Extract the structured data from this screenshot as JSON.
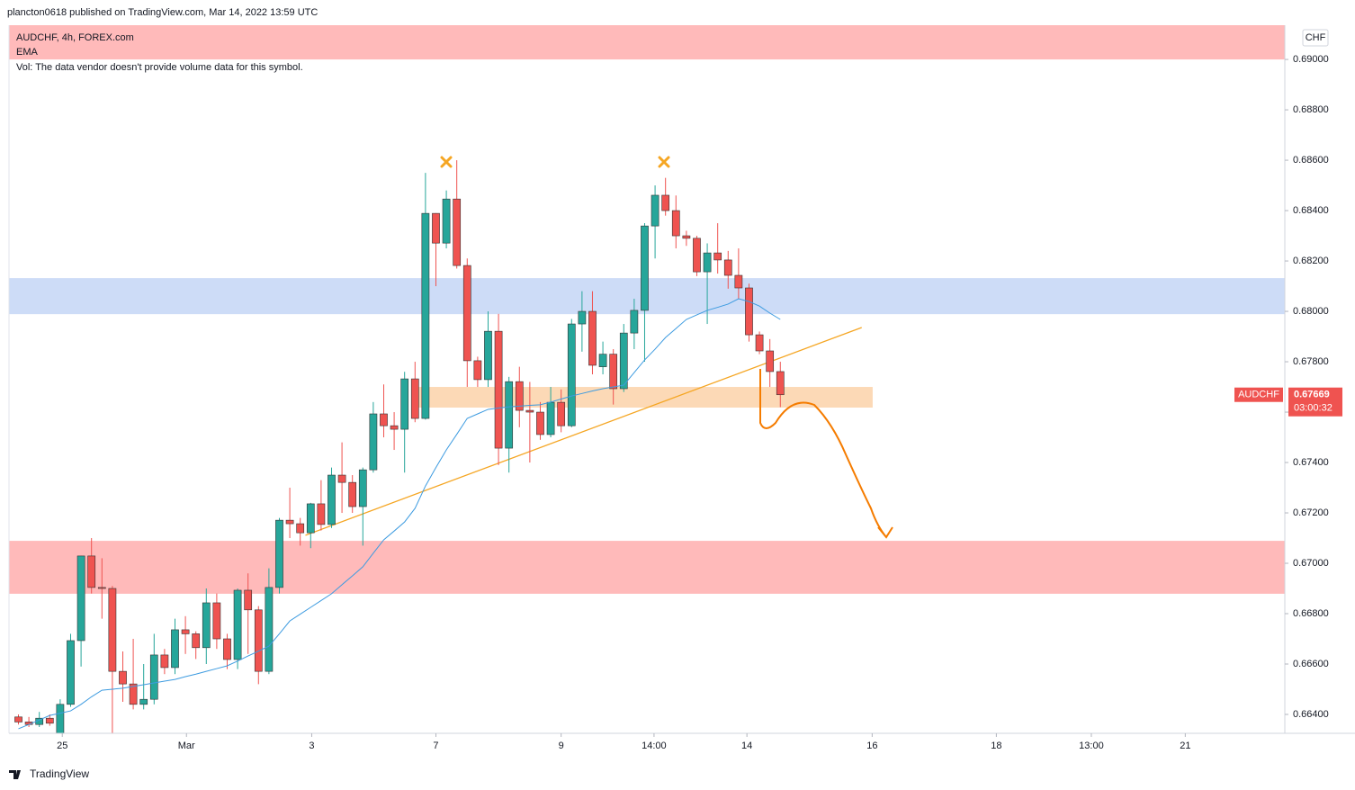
{
  "header": {
    "published": "plancton0618 published on TradingView.com, Mar 14, 2022 13:59 UTC",
    "footer": "TradingView"
  },
  "chart_data": {
    "type": "candlestick",
    "symbol": "AUDCHF, 4h, FOREX.com",
    "indicator": "EMA",
    "volume_note": "Vol: The data vendor doesn't provide volume data for this symbol.",
    "currency": "CHF",
    "up_color": "#26a69a",
    "down_color": "#ef5350",
    "ema_color": "#3d9be0",
    "candles": {
      "open": [
        0.6639,
        0.6637,
        0.6636,
        0.66385,
        0.66325,
        0.6644,
        0.66693,
        0.67029,
        0.66904,
        0.669,
        0.66571,
        0.66521,
        0.6644,
        0.6646,
        0.66636,
        0.66586,
        0.66736,
        0.6672,
        0.66665,
        0.66843,
        0.667,
        0.66618,
        0.66893,
        0.66815,
        0.66571,
        0.66904,
        0.67171,
        0.67157,
        0.67121,
        0.67236,
        0.67154,
        0.6735,
        0.67321,
        0.67225,
        0.67371,
        0.67593,
        0.67546,
        0.67532,
        0.67732,
        0.67575,
        0.68389,
        0.68271,
        0.68446,
        0.68182,
        0.67804,
        0.67729,
        0.67921,
        0.67457,
        0.67721,
        0.67607,
        0.676,
        0.67511,
        0.67639,
        0.67546,
        0.6795,
        0.68,
        0.6778,
        0.6783,
        0.67693,
        0.67914,
        0.68004,
        0.68339,
        0.68461,
        0.684,
        0.683,
        0.6829,
        0.68157,
        0.68232,
        0.68204,
        0.68143,
        0.68093,
        0.67907,
        0.67843,
        0.67761
      ],
      "high": [
        0.664,
        0.6639,
        0.6641,
        0.664,
        0.6646,
        0.6672,
        0.6703,
        0.671,
        0.6702,
        0.6691,
        0.6665,
        0.667,
        0.666,
        0.6672,
        0.6666,
        0.6678,
        0.6679,
        0.6673,
        0.669,
        0.6688,
        0.6672,
        0.669,
        0.6696,
        0.6683,
        0.6698,
        0.6718,
        0.673,
        0.6718,
        0.6724,
        0.6733,
        0.6738,
        0.6748,
        0.6735,
        0.6738,
        0.6764,
        0.6771,
        0.676,
        0.6776,
        0.678,
        0.6855,
        0.6839,
        0.6848,
        0.686,
        0.6821,
        0.6782,
        0.68,
        0.6799,
        0.6774,
        0.6778,
        0.6772,
        0.6764,
        0.677,
        0.6769,
        0.6797,
        0.6808,
        0.6808,
        0.6788,
        0.6785,
        0.6795,
        0.6805,
        0.6835,
        0.685,
        0.6853,
        0.6846,
        0.6832,
        0.683,
        0.6827,
        0.6835,
        0.6824,
        0.6825,
        0.6811,
        0.6792,
        0.6789,
        0.678
      ],
      "low": [
        0.6636,
        0.6635,
        0.6635,
        0.66355,
        0.6632,
        0.6643,
        0.6659,
        0.6688,
        0.6678,
        0.663,
        0.6645,
        0.6642,
        0.6642,
        0.6644,
        0.6656,
        0.6656,
        0.6664,
        0.6662,
        0.666,
        0.6666,
        0.6658,
        0.6658,
        0.6664,
        0.6652,
        0.6656,
        0.6688,
        0.671,
        0.6707,
        0.6706,
        0.6713,
        0.6714,
        0.672,
        0.672,
        0.6707,
        0.6736,
        0.675,
        0.6745,
        0.6736,
        0.6756,
        0.6757,
        0.681,
        0.6825,
        0.6817,
        0.677,
        0.677,
        0.677,
        0.6739,
        0.6736,
        0.6754,
        0.674,
        0.6749,
        0.675,
        0.6752,
        0.6754,
        0.6784,
        0.6775,
        0.6775,
        0.6763,
        0.6768,
        0.6785,
        0.678,
        0.6821,
        0.6838,
        0.6825,
        0.6826,
        0.6814,
        0.6795,
        0.6815,
        0.6809,
        0.6805,
        0.6788,
        0.6783,
        0.677,
        0.6762
      ],
      "close": [
        0.6637,
        0.6636,
        0.66385,
        0.66365,
        0.6644,
        0.66693,
        0.67029,
        0.66904,
        0.669,
        0.66571,
        0.66521,
        0.6644,
        0.6646,
        0.66636,
        0.66586,
        0.66736,
        0.6672,
        0.66665,
        0.66843,
        0.667,
        0.66618,
        0.66893,
        0.66815,
        0.66571,
        0.66904,
        0.67171,
        0.67157,
        0.67121,
        0.67236,
        0.67154,
        0.6735,
        0.67321,
        0.67225,
        0.67371,
        0.67593,
        0.67546,
        0.67532,
        0.67732,
        0.67575,
        0.68389,
        0.68271,
        0.68446,
        0.68182,
        0.67804,
        0.67729,
        0.67921,
        0.67457,
        0.67721,
        0.67607,
        0.676,
        0.67511,
        0.67639,
        0.67546,
        0.6795,
        0.68,
        0.67786,
        0.6783,
        0.67693,
        0.67914,
        0.68004,
        0.68339,
        0.68461,
        0.684,
        0.683,
        0.6829,
        0.68157,
        0.68232,
        0.68204,
        0.68143,
        0.68093,
        0.67907,
        0.67843,
        0.67761,
        0.67669
      ]
    },
    "ema": [
      0.66343,
      0.6636,
      0.66378,
      0.66396,
      0.66405,
      0.66414,
      0.6644,
      0.6647,
      0.66496,
      0.665,
      0.66504,
      0.66511,
      0.66518,
      0.66525,
      0.66532,
      0.66539,
      0.6655,
      0.6656,
      0.66571,
      0.66582,
      0.66593,
      0.66612,
      0.66632,
      0.66651,
      0.66671,
      0.6672,
      0.66771,
      0.66798,
      0.66825,
      0.66852,
      0.66879,
      0.66915,
      0.6695,
      0.66986,
      0.6704,
      0.67093,
      0.67128,
      0.67164,
      0.67218,
      0.67307,
      0.6738,
      0.6745,
      0.67512,
      0.67575,
      0.67593,
      0.67611,
      0.67616,
      0.67621,
      0.67624,
      0.67627,
      0.67629,
      0.6764,
      0.67652,
      0.67664,
      0.67674,
      0.67684,
      0.67693,
      0.677,
      0.67707,
      0.67757,
      0.67807,
      0.6785,
      0.67896,
      0.67932,
      0.67968,
      0.67986,
      0.68004,
      0.68016,
      0.68029,
      0.6805,
      0.68039,
      0.68021,
      0.67993,
      0.67968
    ],
    "zones": [
      {
        "from": 0.69136,
        "to": 0.69,
        "color": "#ffbaba"
      },
      {
        "from": 0.68132,
        "to": 0.67989,
        "color": "#cddcf7"
      },
      {
        "from": 0.677,
        "to": 0.67618,
        "color": "#fcd9b6",
        "start": 38.06,
        "end": 81.85
      },
      {
        "from": 0.67089,
        "to": 0.66879,
        "color": "#ffbaba"
      }
    ],
    "trendline": {
      "x": [
        27.5,
        80.8
      ],
      "y": [
        0.67111,
        0.67936
      ],
      "color": "#f5a623"
    },
    "last_price": {
      "name": "AUDCHF",
      "value": 0.67669,
      "countdown": "03:00:32",
      "color": "#ef5350"
    },
    "ylim": [
      0.66325,
      0.69136
    ],
    "yticks": [
      {
        "value": 0.664,
        "label": "0.66400"
      },
      {
        "value": 0.666,
        "label": "0.66600"
      },
      {
        "value": 0.668,
        "label": "0.66800"
      },
      {
        "value": 0.67,
        "label": "0.67000"
      },
      {
        "value": 0.672,
        "label": "0.67200"
      },
      {
        "value": 0.674,
        "label": "0.67400"
      },
      {
        "value": 0.676,
        "label": "0.67600"
      },
      {
        "value": 0.678,
        "label": "0.67800"
      },
      {
        "value": 0.68,
        "label": "0.68000"
      },
      {
        "value": 0.682,
        "label": "0.68200"
      },
      {
        "value": 0.684,
        "label": "0.68400"
      },
      {
        "value": 0.686,
        "label": "0.68600"
      },
      {
        "value": 0.688,
        "label": "0.68800"
      },
      {
        "value": 0.69,
        "label": "0.69000"
      }
    ],
    "xlim": [
      -0.905,
      121.34
    ],
    "xticks": [
      {
        "value": 4.2,
        "label": "25"
      },
      {
        "value": 16.1,
        "label": "Mar"
      },
      {
        "value": 28.1,
        "label": "3"
      },
      {
        "value": 40.0,
        "label": "7"
      },
      {
        "value": 52.0,
        "label": "9"
      },
      {
        "value": 60.9,
        "label": "14:00"
      },
      {
        "value": 69.8,
        "label": "14"
      },
      {
        "value": 81.8,
        "label": "16"
      },
      {
        "value": 93.7,
        "label": "18"
      },
      {
        "value": 102.8,
        "label": "13:00"
      },
      {
        "value": 111.8,
        "label": "21"
      }
    ]
  }
}
